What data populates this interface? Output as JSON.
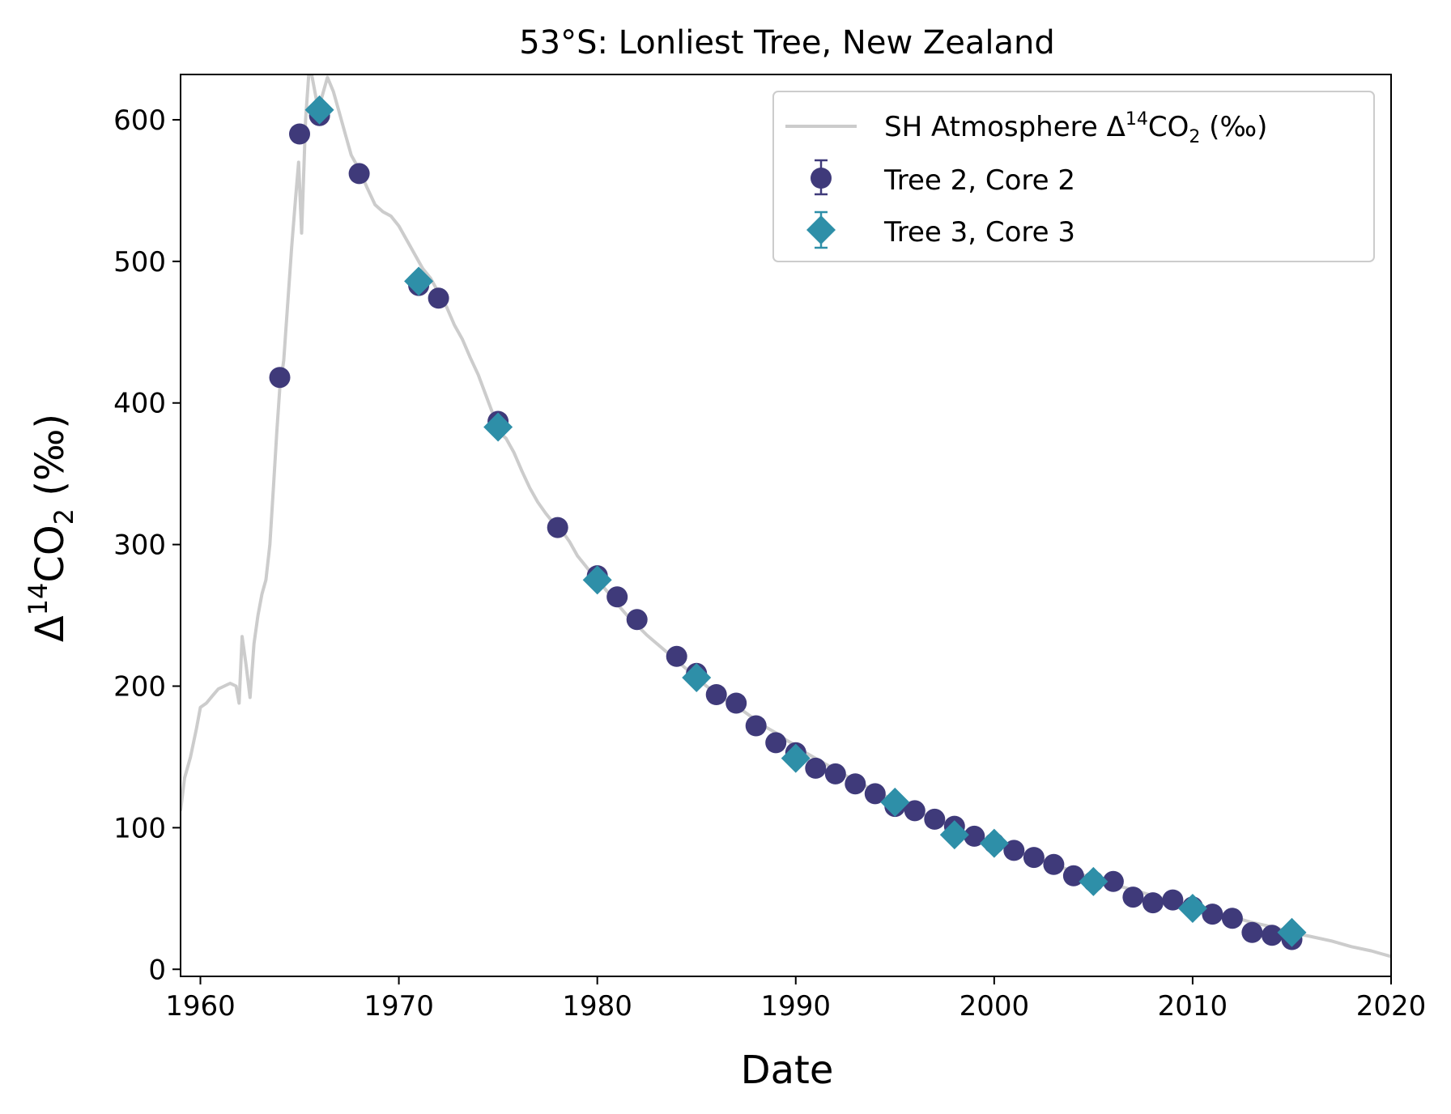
{
  "chart_data": {
    "type": "scatter",
    "title": "53°S: Lonliest Tree, New Zealand",
    "xlabel": "Date",
    "ylabel": {
      "prefix": "Δ",
      "sup": "14",
      "main": "CO",
      "sub": "2",
      "suffix": " (‰)"
    },
    "xlim": [
      1959,
      2020
    ],
    "ylim": [
      -5,
      632
    ],
    "xticks": [
      1960,
      1970,
      1980,
      1990,
      2000,
      2010,
      2020
    ],
    "yticks": [
      0,
      100,
      200,
      300,
      400,
      500,
      600
    ],
    "grid": false,
    "legend_position": "top-right",
    "colors": {
      "atmosphere": "#cccccc",
      "tree2": "#3f3a7a",
      "tree3": "#2e8fa8"
    },
    "series": [
      {
        "name": {
          "prefix": "SH Atmosphere Δ",
          "sup": "14",
          "main": "CO",
          "sub": "2",
          "suffix": " (‰)"
        },
        "kind": "line",
        "x": [
          1959.0,
          1959.2,
          1959.5,
          1959.8,
          1960.0,
          1960.3,
          1960.6,
          1960.9,
          1961.2,
          1961.5,
          1961.8,
          1961.95,
          1962.1,
          1962.3,
          1962.5,
          1962.7,
          1962.9,
          1963.1,
          1963.3,
          1963.5,
          1963.7,
          1963.85,
          1964.0,
          1964.2,
          1964.4,
          1964.6,
          1964.8,
          1964.95,
          1965.1,
          1965.3,
          1965.5,
          1965.7,
          1965.9,
          1966.1,
          1966.4,
          1966.7,
          1967.0,
          1967.3,
          1967.6,
          1968.0,
          1968.4,
          1968.8,
          1969.2,
          1969.6,
          1970.0,
          1970.4,
          1970.8,
          1971.2,
          1971.6,
          1972.0,
          1972.4,
          1972.8,
          1973.2,
          1973.6,
          1974.0,
          1974.4,
          1974.8,
          1975.0,
          1975.4,
          1975.8,
          1976.2,
          1976.6,
          1977.0,
          1977.4,
          1977.8,
          1978.2,
          1978.6,
          1979.0,
          1979.4,
          1979.8,
          1980.2,
          1980.6,
          1981.0,
          1981.5,
          1982.0,
          1982.5,
          1983.0,
          1983.5,
          1984.0,
          1984.5,
          1985.0,
          1985.5,
          1986.0,
          1986.5,
          1987.0,
          1987.5,
          1988.0,
          1988.5,
          1989.0,
          1989.5,
          1990.0,
          1990.5,
          1991.0,
          1991.5,
          1992.0,
          1993.0,
          1994.0,
          1995.0,
          1996.0,
          1997.0,
          1998.0,
          1999.0,
          2000.0,
          2001.0,
          2002.0,
          2003.0,
          2004.0,
          2005.0,
          2006.0,
          2007.0,
          2008.0,
          2009.0,
          2010.0,
          2011.0,
          2012.0,
          2013.0,
          2014.0,
          2015.0,
          2016.0,
          2017.0,
          2018.0,
          2019.0,
          2019.5,
          2020.0
        ],
        "y": [
          112,
          135,
          150,
          170,
          185,
          188,
          193,
          198,
          200,
          202,
          200,
          188,
          235,
          215,
          192,
          230,
          250,
          265,
          275,
          300,
          345,
          380,
          410,
          430,
          470,
          510,
          545,
          570,
          520,
          600,
          640,
          625,
          610,
          615,
          630,
          620,
          605,
          590,
          575,
          565,
          552,
          540,
          535,
          532,
          525,
          515,
          505,
          495,
          488,
          478,
          468,
          455,
          445,
          432,
          420,
          405,
          390,
          380,
          375,
          365,
          352,
          340,
          330,
          322,
          315,
          310,
          302,
          292,
          285,
          278,
          272,
          265,
          258,
          250,
          243,
          236,
          230,
          224,
          218,
          212,
          206,
          200,
          195,
          190,
          186,
          181,
          176,
          171,
          167,
          162,
          158,
          153,
          149,
          145,
          141,
          133,
          126,
          119,
          112,
          106,
          100,
          94,
          89,
          84,
          79,
          74,
          69,
          64,
          60,
          56,
          52,
          48,
          45,
          41,
          37,
          33,
          30,
          26,
          23,
          20,
          16,
          13,
          11,
          9
        ]
      },
      {
        "name": "Tree 2, Core 2",
        "kind": "scatter",
        "marker": "circle",
        "x": [
          1964,
          1965,
          1966,
          1968,
          1971,
          1972,
          1975,
          1978,
          1980,
          1981,
          1982,
          1984,
          1985,
          1986,
          1987,
          1988,
          1989,
          1990,
          1991,
          1992,
          1993,
          1994,
          1995,
          1996,
          1997,
          1998,
          1999,
          2000,
          2001,
          2002,
          2003,
          2004,
          2005,
          2006,
          2007,
          2008,
          2009,
          2010,
          2011,
          2012,
          2013,
          2014,
          2015
        ],
        "y": [
          418,
          590,
          603,
          562,
          483,
          474,
          387,
          312,
          278,
          263,
          247,
          221,
          209,
          194,
          188,
          172,
          160,
          153,
          142,
          138,
          131,
          124,
          115,
          112,
          106,
          101,
          94,
          89,
          84,
          79,
          74,
          66,
          62,
          62,
          51,
          47,
          49,
          44,
          39,
          36,
          26,
          24,
          21
        ]
      },
      {
        "name": "Tree 3, Core 3",
        "kind": "scatter",
        "marker": "diamond",
        "x": [
          1966,
          1971,
          1975,
          1980,
          1985,
          1990,
          1995,
          1998,
          2000,
          2005,
          2010,
          2015
        ],
        "y": [
          607,
          486,
          383,
          275,
          206,
          149,
          118,
          95,
          89,
          62,
          43,
          26
        ]
      }
    ]
  }
}
